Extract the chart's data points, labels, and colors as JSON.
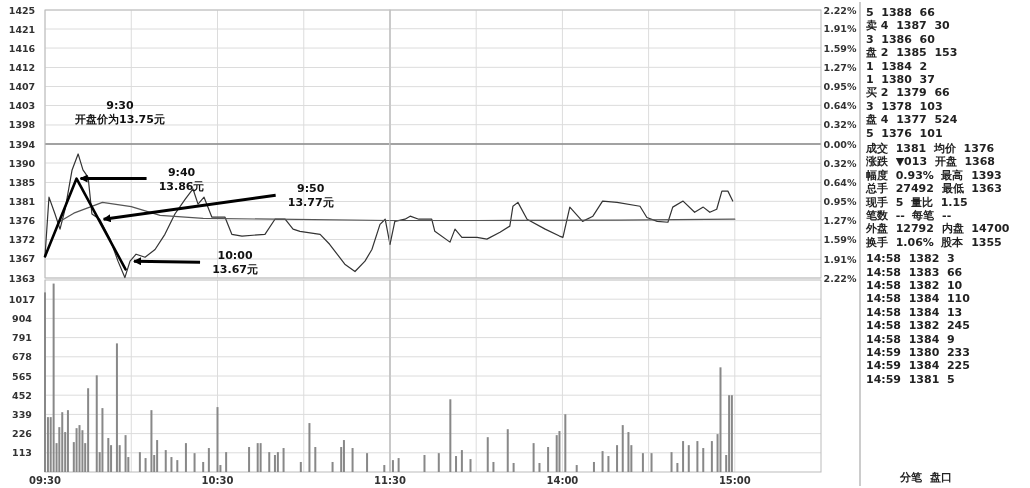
{
  "chart_data": [
    {
      "type": "line",
      "x": [
        9.5,
        9.523,
        9.558,
        9.587,
        9.617,
        9.657,
        9.692,
        9.72,
        9.75,
        9.772,
        9.817,
        9.877,
        9.923,
        9.963,
        9.993,
        10.028,
        10.08,
        10.138,
        10.195,
        10.253,
        10.312,
        10.358,
        10.387,
        10.422,
        10.467,
        10.543,
        10.583,
        10.642,
        10.775,
        10.833,
        10.892,
        10.938,
        10.978,
        11.095,
        11.15,
        11.238,
        11.297,
        11.355,
        11.395,
        11.442,
        11.472,
        11.5
      ],
      "series": [
        {
          "color": "#333333",
          "values": [
            1368,
            1381.7,
            1377.8,
            1374.3,
            1379,
            1388,
            1391.7,
            1388,
            1386.3,
            1377.8,
            1376.6,
            1372,
            1366.9,
            1363.1,
            1366.9,
            1368.5,
            1367.8,
            1369.6,
            1373.1,
            1377.8,
            1381.2,
            1383.6,
            1380.1,
            1381.7,
            1377.1,
            1377.1,
            1373.1,
            1372.7,
            1373.1,
            1376.6,
            1376.6,
            1374.3,
            1373.8,
            1373.1,
            1370.8,
            1366.2,
            1364.5,
            1366.9,
            1369.6,
            1375.4,
            1376.6,
            1370.8
          ]
        },
        {
          "color": "#555555",
          "x": [
            9.583,
            9.667,
            9.833,
            10,
            10.167,
            10.417,
            10.833,
            11.5
          ],
          "values": [
            1376,
            1378,
            1380.5,
            1379.5,
            1377.5,
            1376.8,
            1376.6,
            1376.3
          ]
        },
        {
          "color": "#000000",
          "x": [
            9.5,
            9.683,
            9.967
          ],
          "values": [
            1368,
            1386,
            1365
          ]
        }
      ],
      "xlim": [
        9.5,
        11.5
      ],
      "xticks": [
        9.5,
        10,
        10.5,
        11,
        11.5
      ],
      "ylim": [
        1363,
        1425
      ],
      "yticks": [
        {
          "value": 1363,
          "label": "1363"
        },
        {
          "value": 1367.4,
          "label": "1367"
        },
        {
          "value": 1371.9,
          "label": "1372"
        },
        {
          "value": 1376.3,
          "label": "1376"
        },
        {
          "value": 1380.7,
          "label": "1381"
        },
        {
          "value": 1385.1,
          "label": "1385"
        },
        {
          "value": 1389.6,
          "label": "1390"
        },
        {
          "value": 1394,
          "label": "1394"
        },
        {
          "value": 1398.4,
          "label": "1398"
        },
        {
          "value": 1402.9,
          "label": "1403"
        },
        {
          "value": 1407.3,
          "label": "1407"
        },
        {
          "value": 1411.7,
          "label": "1412"
        },
        {
          "value": 1416.2,
          "label": "1416"
        },
        {
          "value": 1420.6,
          "label": "1421"
        },
        {
          "value": 1425,
          "label": "1425"
        }
      ],
      "tick_labels": "y",
      "grid": true,
      "ref_lines": [
        {
          "axis": "y",
          "value": 1394
        }
      ],
      "annotations": [
        "9:30\n开盘价为13.75元",
        {
          "text": "9:40\n13.86元",
          "x": 9.683,
          "y": 1386
        },
        {
          "text": "9:50\n13.77元",
          "x": 9.817,
          "y": 1376.6
        },
        {
          "text": "10:00\n13.67元",
          "x": 9.993,
          "y": 1366.9
        }
      ]
    },
    {
      "type": "line",
      "x": [
        13,
        13.028,
        13.087,
        13.117,
        13.167,
        13.242,
        13.26,
        13.348,
        13.377,
        13.417,
        13.505,
        13.562,
        13.638,
        13.695,
        13.713,
        13.742,
        13.795,
        13.9,
        13.983,
        14.003,
        14.043,
        14.117,
        14.177,
        14.233,
        14.317,
        14.45,
        14.49,
        14.55,
        14.612,
        14.64,
        14.7,
        14.767,
        14.817,
        14.855,
        14.895,
        14.925,
        14.96,
        14.988
      ],
      "series": [
        {
          "color": "#333333",
          "values": [
            1370.8,
            1376.1,
            1376.6,
            1377.3,
            1376.6,
            1376.6,
            1373.8,
            1371.3,
            1374.3,
            1372.4,
            1372.4,
            1372,
            1373.6,
            1375,
            1379.6,
            1380.5,
            1376.6,
            1374.3,
            1372.7,
            1372.4,
            1379.4,
            1376.1,
            1377.3,
            1380.8,
            1380.5,
            1379.6,
            1377,
            1376.1,
            1375.9,
            1379.4,
            1380.8,
            1378.2,
            1379.4,
            1378.2,
            1378.9,
            1383.1,
            1383.1,
            1380.8
          ]
        },
        {
          "color": "#555555",
          "x": [
            13,
            13.5,
            14.333,
            15
          ],
          "values": [
            1376.3,
            1376.3,
            1376.4,
            1376.6
          ]
        }
      ],
      "xlim": [
        13,
        15.5
      ],
      "xticks": [
        13,
        13.5,
        14,
        14.5,
        15
      ],
      "ylim": [
        1363,
        1425
      ],
      "y2lim": [
        -2.22,
        2.22
      ],
      "y2ticks": [
        {
          "value": -2.22,
          "label": "2.22%"
        },
        {
          "value": -1.91,
          "label": "1.91%"
        },
        {
          "value": -1.59,
          "label": "1.59%"
        },
        {
          "value": -1.27,
          "label": "1.27%"
        },
        {
          "value": -0.95,
          "label": "0.95%"
        },
        {
          "value": -0.64,
          "label": "0.64%"
        },
        {
          "value": -0.32,
          "label": "0.32%"
        },
        {
          "value": 0,
          "label": "0.00%"
        },
        {
          "value": 0.32,
          "label": "0.32%"
        },
        {
          "value": 0.64,
          "label": "0.64%"
        },
        {
          "value": 0.95,
          "label": "0.95%"
        },
        {
          "value": 1.27,
          "label": "1.27%"
        },
        {
          "value": 1.59,
          "label": "1.59%"
        },
        {
          "value": 1.91,
          "label": "1.91%"
        },
        {
          "value": 2.22,
          "label": "2.22%"
        }
      ],
      "tick_labels": "y",
      "grid": true,
      "ref_lines": [
        {
          "axis": "y2",
          "value": 0
        }
      ]
    },
    {
      "type": "bar",
      "color": "#888888",
      "grid": true,
      "x": [
        9.5,
        9.517,
        9.533,
        9.55,
        9.567,
        9.583,
        9.6,
        9.617,
        9.633,
        9.667,
        9.683,
        9.7,
        9.717,
        9.733,
        9.75,
        9.8,
        9.817,
        9.833,
        9.867,
        9.883,
        9.917,
        9.933,
        9.967,
        9.983,
        10.05,
        10.083,
        10.117,
        10.133,
        10.15,
        10.2,
        10.233,
        10.267,
        10.317,
        10.367,
        10.417,
        10.45,
        10.5,
        10.517,
        10.55,
        10.683,
        10.733,
        10.75,
        10.8,
        10.833,
        10.85,
        10.883,
        10.983,
        11.033,
        11.067,
        11.167,
        11.217,
        11.233,
        11.283,
        11.367,
        11.467
      ],
      "values": [
        1057,
        323,
        323,
        1109,
        170,
        264,
        352,
        235,
        364,
        176,
        258,
        276,
        246,
        170,
        493,
        569,
        117,
        376,
        200,
        158,
        757,
        158,
        217,
        88,
        117,
        82,
        364,
        100,
        188,
        129,
        88,
        70,
        170,
        111,
        59,
        141,
        382,
        41,
        117,
        147,
        170,
        170,
        117,
        100,
        117,
        141,
        59,
        288,
        147,
        59,
        147,
        188,
        141,
        111,
        41
      ],
      "xlim": [
        9.5,
        11.5
      ],
      "xticks": [
        {
          "value": 9.5,
          "label": "09:30"
        },
        {
          "value": 10,
          "label": null
        },
        {
          "value": 10.5,
          "label": "10:30"
        },
        {
          "value": 11,
          "label": null
        },
        {
          "value": 11.5,
          "label": "11:30"
        }
      ],
      "ylim": [
        0,
        1130
      ],
      "yticks": [
        113,
        226,
        339,
        452,
        565,
        678,
        791,
        904,
        1017
      ]
    },
    {
      "type": "bar",
      "color": "#888888",
      "grid": true,
      "x": [
        13.017,
        13.05,
        13.2,
        13.283,
        13.35,
        13.383,
        13.417,
        13.467,
        13.567,
        13.6,
        13.683,
        13.717,
        13.833,
        13.867,
        13.917,
        13.967,
        13.983,
        14.017,
        14.083,
        14.183,
        14.233,
        14.267,
        14.317,
        14.35,
        14.383,
        14.4,
        14.467,
        14.517,
        14.633,
        14.667,
        14.7,
        14.733,
        14.783,
        14.817,
        14.867,
        14.9,
        14.917,
        14.95,
        14.967,
        14.983
      ],
      "values": [
        70,
        82,
        100,
        111,
        428,
        94,
        129,
        76,
        205,
        59,
        252,
        53,
        170,
        53,
        147,
        217,
        241,
        340,
        41,
        59,
        123,
        94,
        158,
        276,
        235,
        158,
        111,
        111,
        117,
        53,
        182,
        158,
        182,
        141,
        182,
        223,
        616,
        100,
        452,
        452
      ],
      "xlim": [
        13,
        15.5
      ],
      "xticks": [
        {
          "value": 13.5,
          "label": null
        },
        {
          "value": 14,
          "label": "14:00"
        },
        {
          "value": 14.5,
          "label": null
        },
        {
          "value": 15,
          "label": "15:00"
        }
      ],
      "ylim": [
        0,
        1130
      ],
      "yticks": [
        113,
        226,
        339,
        452,
        565,
        678,
        791,
        904,
        1017
      ],
      "tick_labels": "x"
    },
    {
      "type": "other",
      "annotations": [
        "5  1388  66",
        "卖 4  1387  30",
        "3  1386  60",
        "盘 2  1385  153",
        "1  1384  2",
        "1  1380  37",
        "买 2  1379  66",
        "3  1378  103",
        "盘 4  1377  524",
        "5  1376  101",
        "成交  1381  均价  1376",
        "涨跌  ▼013  开盘  1368",
        "幅度  0.93%  最高  1393",
        "总手  27492  最低  1363",
        "现手  5  量比  1.15",
        "笔数  --  每笔  --",
        "外盘  12792  内盘  14700",
        "换手  1.06%  股本  1355",
        "14:58  1382  3",
        "14:58  1383  66",
        "14:58  1382  10",
        "14:58  1384  110",
        "14:58  1384  13",
        "14:58  1382  245",
        "14:58  1384  9",
        "14:59  1380  233",
        "14:59  1384  225",
        "14:59  1381  5",
        "分笔  盘口"
      ]
    }
  ]
}
